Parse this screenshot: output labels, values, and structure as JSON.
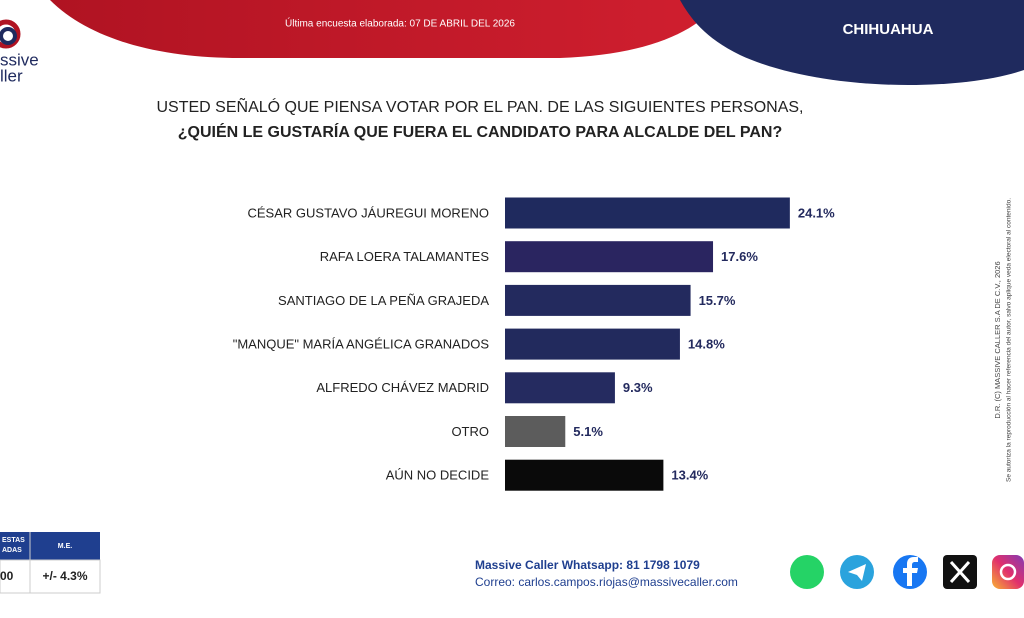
{
  "header": {
    "survey_date": "Última encuesta elaborada: 07 DE ABRIL DEL 2026",
    "region": "CHIHUAHUA",
    "logo": [
      "ssive",
      "ller"
    ]
  },
  "chart_data": {
    "type": "bar",
    "orientation": "horizontal",
    "title": "USTED SEÑALÓ QUE PIENSA VOTAR POR EL PAN. DE LAS SIGUIENTES PERSONAS,",
    "subtitle": "¿QUIÉN LE GUSTARÍA QUE FUERA EL CANDIDATO PARA ALCALDE DEL PAN?",
    "categories": [
      "CÉSAR GUSTAVO JÁUREGUI MORENO",
      "RAFA LOERA TALAMANTES",
      "SANTIAGO DE LA PEÑA GRAJEDA",
      "\"MANQUE\" MARÍA ANGÉLICA GRANADOS",
      "ALFREDO CHÁVEZ MADRID",
      "OTRO",
      "AÚN NO DECIDE"
    ],
    "values": [
      24.1,
      17.6,
      15.7,
      14.8,
      9.3,
      5.1,
      13.4
    ],
    "value_labels": [
      "24.1%",
      "17.6%",
      "15.7%",
      "14.8%",
      "9.3%",
      "5.1%",
      "13.4%"
    ],
    "colors": [
      "#1f2a5e",
      "#2a2560",
      "#232a5e",
      "#222a5d",
      "#252b60",
      "#5c5c5c",
      "#0a0a0a"
    ],
    "value_label_color": "#232a5e"
  },
  "sample_table": {
    "headers": [
      [
        "ESTAS",
        "ADAS"
      ],
      [
        "M.E."
      ]
    ],
    "cells": [
      "00",
      "+/- 4.3%"
    ]
  },
  "footer": {
    "whatsapp": "Massive Caller Whatsapp: 81 1798 1079",
    "email": "Correo: carlos.campos.riojas@massivecaller.com"
  },
  "copyright": [
    "D.R. (C) MASSIVE CALLER S.A DE C.V., 2026",
    "Se autoriza la reproducción al hacer referencia del autor, salvo aplique veda electoral al contenido."
  ]
}
